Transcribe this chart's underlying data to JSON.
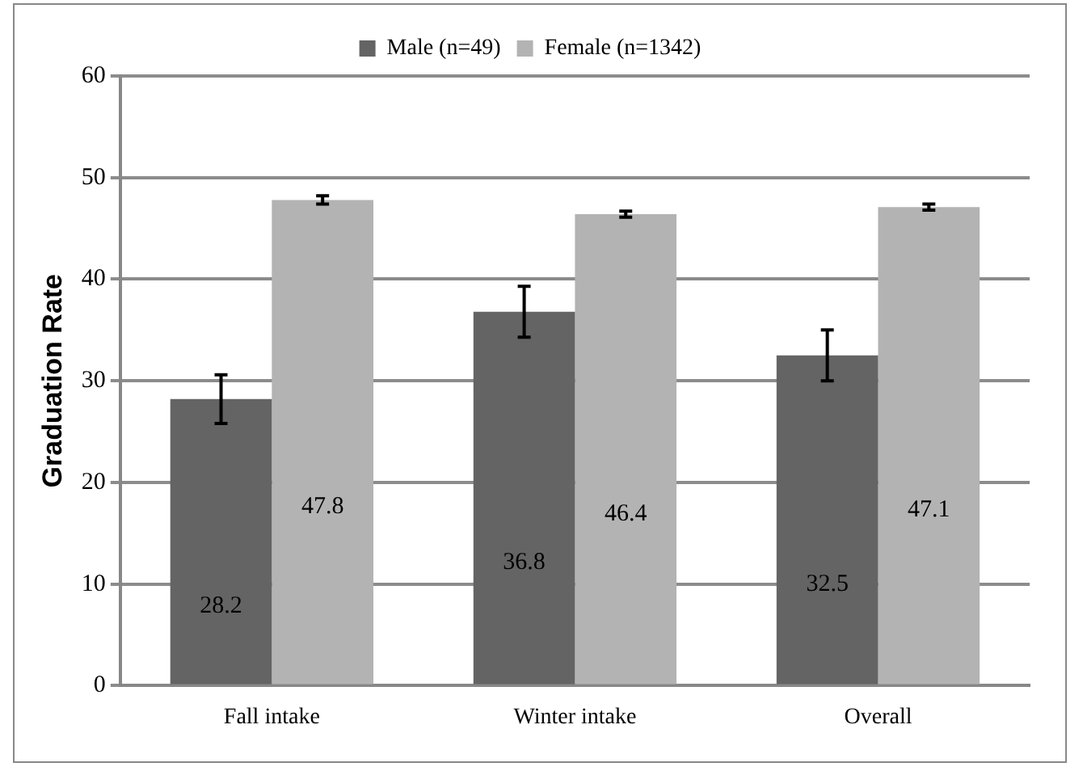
{
  "chart_data": {
    "type": "bar",
    "ylabel": "Graduation Rate",
    "categories": [
      "Fall intake",
      "Winter intake",
      "Overall"
    ],
    "series": [
      {
        "name": "Male (n=49)",
        "color": "#646464",
        "values": [
          28.2,
          36.8,
          32.5
        ],
        "errors": [
          2.4,
          2.5,
          2.5
        ]
      },
      {
        "name": "Female (n=1342)",
        "color": "#b3b3b3",
        "values": [
          47.8,
          46.4,
          47.1
        ],
        "errors": [
          0.4,
          0.3,
          0.3
        ]
      }
    ],
    "ylim": [
      0,
      60
    ],
    "yticks": [
      0,
      10,
      20,
      30,
      40,
      50,
      60
    ],
    "grid": "y",
    "legend": "top",
    "data_labels": true
  }
}
